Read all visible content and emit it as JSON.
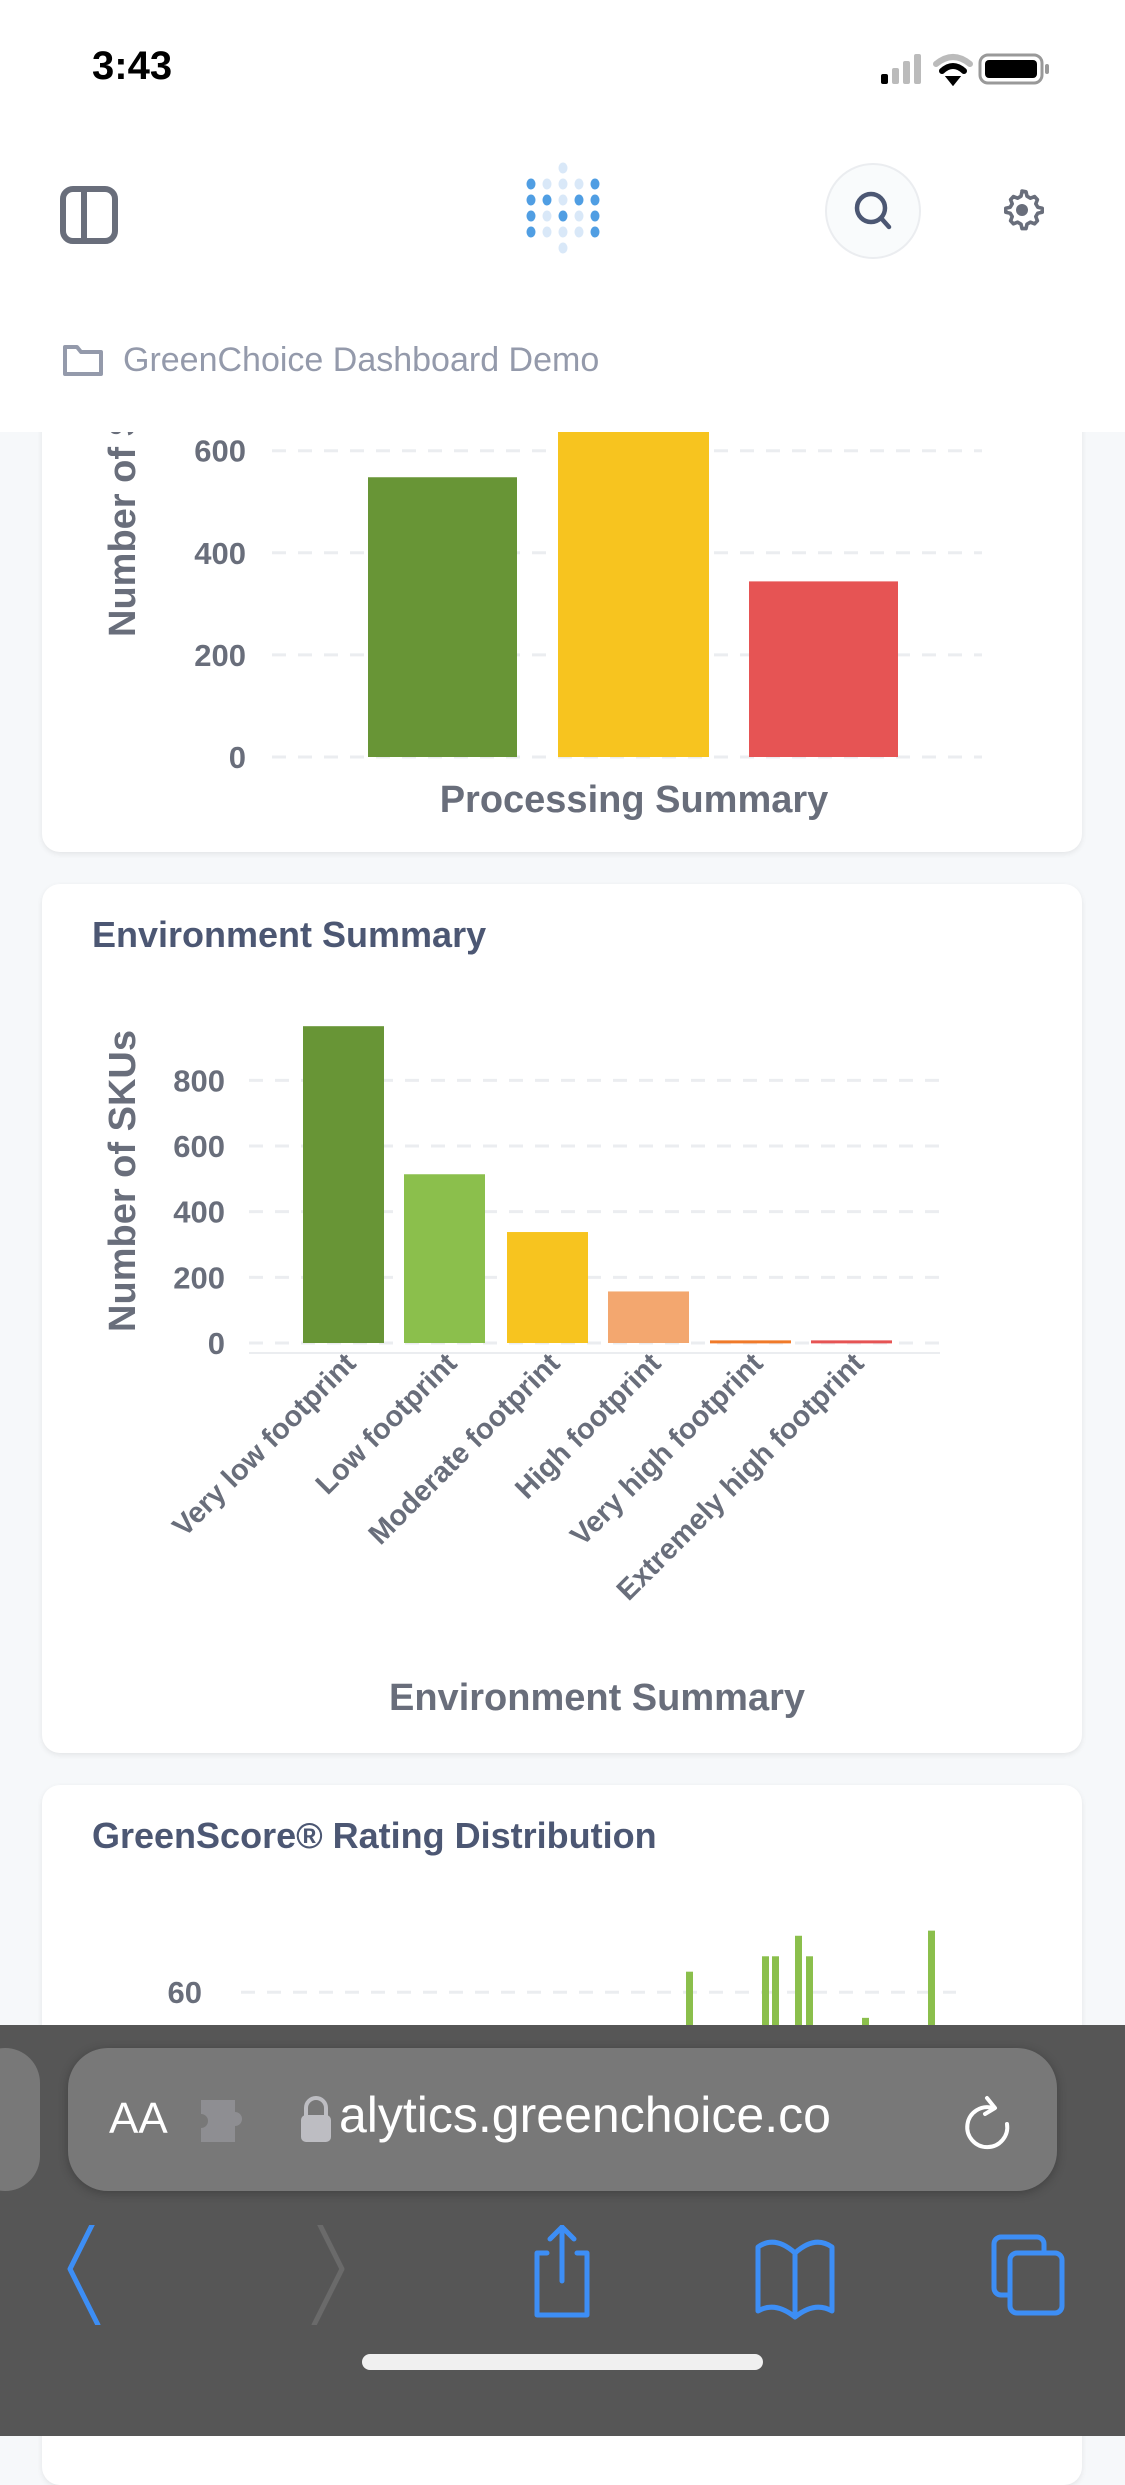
{
  "status_bar": {
    "time": "3:43",
    "signal_icon": "cellular-signal-icon",
    "wifi_icon": "wifi-icon",
    "battery_icon": "battery-icon"
  },
  "header": {
    "sidebar_icon": "sidebar-toggle-icon",
    "logo_icon": "dotted-logo-icon",
    "search_icon": "search-icon",
    "settings_icon": "gear-icon",
    "breadcrumb": "GreenChoice Dashboard Demo"
  },
  "cards": {
    "environment_title": "Environment Summary",
    "greenscore_title": "GreenScore® Rating Distribution"
  },
  "chart_data": [
    {
      "type": "bar",
      "title": "",
      "xlabel": "Processing Summary",
      "ylabel": "Number of SKUs",
      "categories": [
        "",
        "",
        ""
      ],
      "values": [
        548,
        650,
        344
      ],
      "colors": [
        "#689536",
        "#F7C41F",
        "#E65454"
      ],
      "yticks": [
        0,
        200,
        400,
        600
      ],
      "grid": true
    },
    {
      "type": "bar",
      "title": "Environment Summary",
      "xlabel": "Environment Summary",
      "ylabel": "Number of SKUs",
      "categories": [
        "Very low footprint",
        "Low footprint",
        "Moderate footprint",
        "High footprint",
        "Very high footprint",
        "Extremely high footprint"
      ],
      "values": [
        965,
        514,
        338,
        157,
        8,
        8
      ],
      "colors": [
        "#689536",
        "#8BBF4C",
        "#F7C41F",
        "#F3A76F",
        "#F07A2A",
        "#E65454"
      ],
      "yticks": [
        0,
        200,
        400,
        600,
        800
      ],
      "ylim": [
        0,
        1000
      ],
      "grid": true
    },
    {
      "type": "bar",
      "title": "GreenScore® Rating Distribution",
      "yticks": [
        60
      ],
      "values": [
        64,
        67,
        67,
        71,
        67,
        55,
        72
      ],
      "colors": [
        "#8BBF4C"
      ],
      "grid": true
    }
  ],
  "browser": {
    "text_size_label": "AA",
    "extension_icon": "puzzle-icon",
    "lock_icon": "lock-icon",
    "url": "alytics.greenchoice.co",
    "reload_icon": "reload-icon",
    "toolbar": [
      "back-icon",
      "forward-icon",
      "share-icon",
      "bookmarks-icon",
      "tabs-icon"
    ]
  }
}
